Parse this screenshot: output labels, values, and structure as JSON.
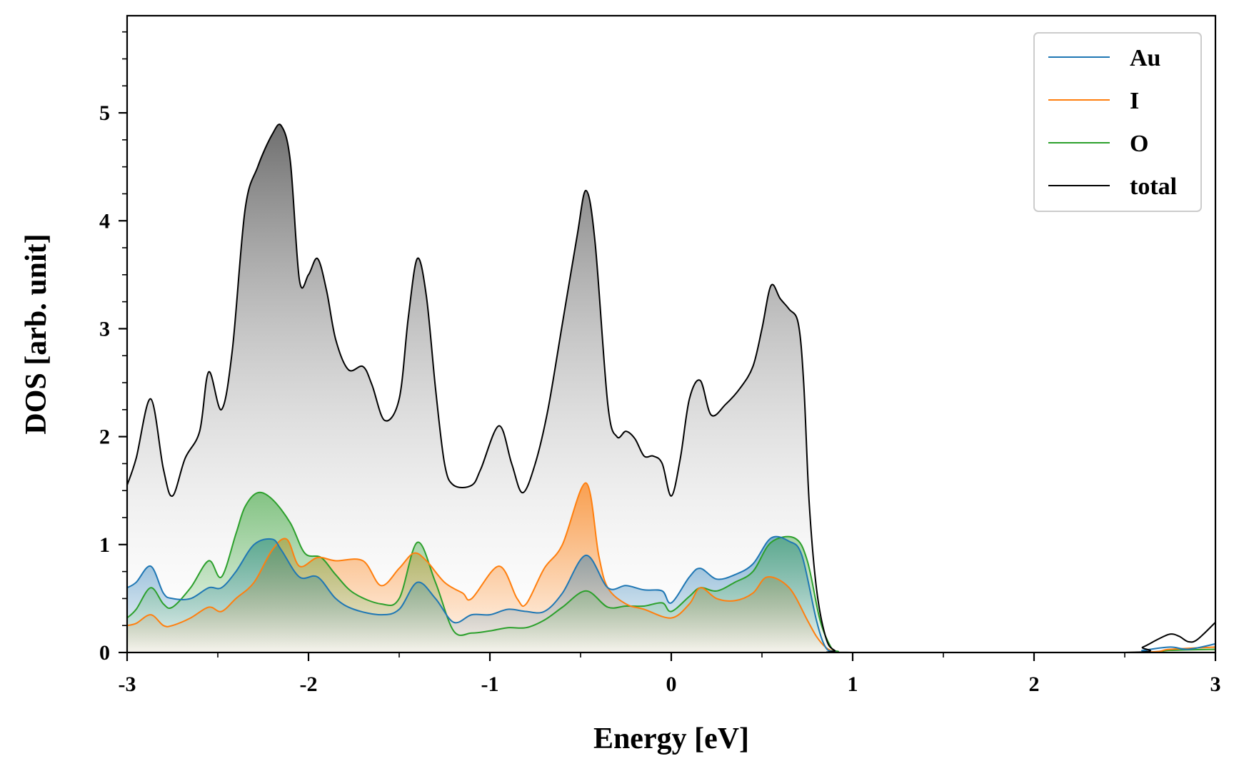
{
  "chart_data": {
    "type": "area",
    "xlabel": "Energy [eV]",
    "ylabel": "DOS [arb. unit]",
    "xlim": [
      -3,
      3
    ],
    "ylim": [
      0,
      5.9
    ],
    "xticks": [
      -3,
      -2,
      -1,
      0,
      1,
      2,
      3
    ],
    "xtick_labels": [
      "-3",
      "-2",
      "-1",
      "0",
      "1",
      "2",
      "3"
    ],
    "yticks": [
      0,
      1,
      2,
      3,
      4,
      5
    ],
    "ytick_labels": [
      "0",
      "1",
      "2",
      "3",
      "4",
      "5"
    ],
    "grid": false,
    "legend_position": "top-right",
    "series": [
      {
        "name": "Au",
        "color": "#1f77b4",
        "x": [
          -3.0,
          -2.95,
          -2.87,
          -2.8,
          -2.75,
          -2.65,
          -2.55,
          -2.48,
          -2.4,
          -2.3,
          -2.2,
          -2.15,
          -2.05,
          -1.95,
          -1.85,
          -1.75,
          -1.6,
          -1.5,
          -1.4,
          -1.3,
          -1.2,
          -1.1,
          -1.0,
          -0.9,
          -0.8,
          -0.7,
          -0.6,
          -0.47,
          -0.35,
          -0.25,
          -0.15,
          -0.05,
          0.0,
          0.1,
          0.16,
          0.25,
          0.35,
          0.45,
          0.55,
          0.65,
          0.72,
          0.8,
          0.85,
          0.9,
          1.0,
          2.5,
          2.6,
          2.75,
          2.85,
          3.0
        ],
        "y": [
          0.6,
          0.65,
          0.8,
          0.55,
          0.5,
          0.5,
          0.6,
          0.6,
          0.75,
          1.0,
          1.05,
          0.95,
          0.7,
          0.7,
          0.5,
          0.4,
          0.35,
          0.4,
          0.65,
          0.5,
          0.28,
          0.35,
          0.35,
          0.4,
          0.38,
          0.38,
          0.55,
          0.9,
          0.6,
          0.62,
          0.58,
          0.57,
          0.46,
          0.7,
          0.78,
          0.68,
          0.72,
          0.82,
          1.06,
          1.03,
          0.9,
          0.3,
          0.05,
          0.01,
          0.0,
          0.0,
          0.02,
          0.05,
          0.03,
          0.08
        ]
      },
      {
        "name": "I",
        "color": "#ff7f0e",
        "x": [
          -3.0,
          -2.95,
          -2.87,
          -2.8,
          -2.75,
          -2.65,
          -2.55,
          -2.48,
          -2.4,
          -2.3,
          -2.2,
          -2.12,
          -2.05,
          -1.95,
          -1.85,
          -1.7,
          -1.6,
          -1.5,
          -1.42,
          -1.35,
          -1.25,
          -1.15,
          -1.1,
          -0.95,
          -0.85,
          -0.8,
          -0.7,
          -0.6,
          -0.47,
          -0.4,
          -0.35,
          -0.25,
          -0.15,
          0.0,
          0.1,
          0.16,
          0.25,
          0.35,
          0.45,
          0.53,
          0.65,
          0.75,
          0.8,
          0.85,
          0.9,
          1.0,
          2.5,
          2.75,
          3.0
        ],
        "y": [
          0.25,
          0.27,
          0.35,
          0.25,
          0.25,
          0.32,
          0.42,
          0.38,
          0.5,
          0.65,
          0.95,
          1.05,
          0.8,
          0.88,
          0.85,
          0.85,
          0.62,
          0.78,
          0.92,
          0.85,
          0.65,
          0.55,
          0.5,
          0.8,
          0.5,
          0.45,
          0.78,
          1.0,
          1.57,
          0.9,
          0.6,
          0.45,
          0.4,
          0.32,
          0.45,
          0.6,
          0.5,
          0.48,
          0.55,
          0.7,
          0.6,
          0.3,
          0.15,
          0.05,
          0.01,
          0.0,
          0.0,
          0.03,
          0.05
        ]
      },
      {
        "name": "O",
        "color": "#2ca02c",
        "x": [
          -3.0,
          -2.95,
          -2.87,
          -2.8,
          -2.75,
          -2.65,
          -2.55,
          -2.48,
          -2.4,
          -2.35,
          -2.28,
          -2.2,
          -2.1,
          -2.02,
          -1.93,
          -1.85,
          -1.75,
          -1.6,
          -1.5,
          -1.4,
          -1.3,
          -1.2,
          -1.1,
          -1.0,
          -0.9,
          -0.8,
          -0.7,
          -0.6,
          -0.47,
          -0.35,
          -0.25,
          -0.15,
          -0.05,
          0.0,
          0.1,
          0.16,
          0.25,
          0.35,
          0.45,
          0.55,
          0.68,
          0.75,
          0.82,
          0.88,
          0.92,
          1.0,
          2.5,
          2.75,
          3.0
        ],
        "y": [
          0.32,
          0.4,
          0.6,
          0.45,
          0.42,
          0.6,
          0.85,
          0.7,
          1.1,
          1.35,
          1.48,
          1.42,
          1.2,
          0.92,
          0.88,
          0.72,
          0.55,
          0.45,
          0.5,
          1.02,
          0.65,
          0.2,
          0.18,
          0.2,
          0.23,
          0.23,
          0.3,
          0.42,
          0.57,
          0.42,
          0.43,
          0.43,
          0.46,
          0.38,
          0.52,
          0.6,
          0.57,
          0.65,
          0.75,
          1.02,
          1.06,
          0.85,
          0.3,
          0.05,
          0.01,
          0.0,
          0.0,
          0.02,
          0.03
        ]
      },
      {
        "name": "total",
        "color": "#000000",
        "x": [
          -3.0,
          -2.95,
          -2.87,
          -2.8,
          -2.75,
          -2.68,
          -2.6,
          -2.55,
          -2.48,
          -2.42,
          -2.35,
          -2.28,
          -2.2,
          -2.15,
          -2.1,
          -2.05,
          -2.0,
          -1.95,
          -1.9,
          -1.85,
          -1.78,
          -1.7,
          -1.65,
          -1.58,
          -1.5,
          -1.45,
          -1.4,
          -1.35,
          -1.3,
          -1.25,
          -1.2,
          -1.1,
          -1.05,
          -0.95,
          -0.88,
          -0.82,
          -0.75,
          -0.68,
          -0.6,
          -0.52,
          -0.47,
          -0.42,
          -0.35,
          -0.3,
          -0.25,
          -0.2,
          -0.15,
          -0.1,
          -0.05,
          0.0,
          0.05,
          0.1,
          0.16,
          0.22,
          0.3,
          0.38,
          0.45,
          0.5,
          0.55,
          0.6,
          0.65,
          0.7,
          0.73,
          0.76,
          0.8,
          0.85,
          0.9,
          1.0,
          2.5,
          2.6,
          2.68,
          2.75,
          2.8,
          2.85,
          2.9,
          3.0
        ],
        "y": [
          1.55,
          1.8,
          2.35,
          1.7,
          1.45,
          1.8,
          2.05,
          2.6,
          2.25,
          2.8,
          4.1,
          4.5,
          4.8,
          4.88,
          4.55,
          3.45,
          3.5,
          3.65,
          3.35,
          2.9,
          2.62,
          2.65,
          2.48,
          2.15,
          2.35,
          3.1,
          3.65,
          3.3,
          2.45,
          1.75,
          1.55,
          1.55,
          1.7,
          2.1,
          1.75,
          1.48,
          1.75,
          2.25,
          3.05,
          3.85,
          4.28,
          3.8,
          2.3,
          2.0,
          2.05,
          1.98,
          1.82,
          1.82,
          1.75,
          1.45,
          1.8,
          2.35,
          2.52,
          2.2,
          2.3,
          2.45,
          2.65,
          3.0,
          3.4,
          3.28,
          3.18,
          3.05,
          2.5,
          1.4,
          0.6,
          0.15,
          0.02,
          0.0,
          0.0,
          0.05,
          0.12,
          0.17,
          0.15,
          0.1,
          0.12,
          0.28
        ]
      }
    ]
  }
}
